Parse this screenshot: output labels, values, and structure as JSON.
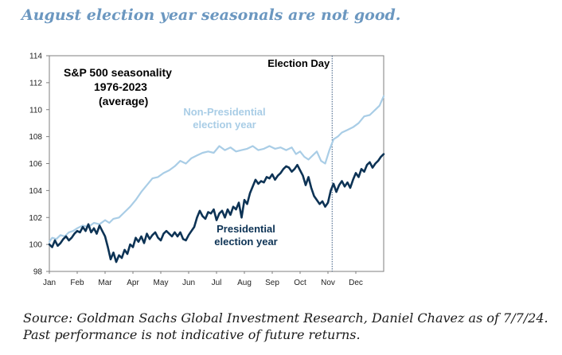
{
  "headline": "August election year seasonals are not good.",
  "source": {
    "line1": "Source: Goldman Sachs Global Investment Research, Daniel Chavez  as of 7/7/24.",
    "line2": "Past performance is not indicative of future returns."
  },
  "colors": {
    "non_presidential": "#a9cde6",
    "presidential": "#0d3355",
    "election_line": "#3a5a80",
    "headline": "#6b97c0"
  },
  "chart_data": {
    "type": "line",
    "title": "S&P 500 seasonality\n1976-2023\n(average)",
    "title_lines": [
      "S&P 500 seasonality",
      "1976-2023",
      "(average)"
    ],
    "xlabel": "",
    "ylabel": "",
    "x_range": [
      0,
      12
    ],
    "ylim": [
      98,
      114
    ],
    "yticks": [
      98,
      100,
      102,
      104,
      106,
      108,
      110,
      112,
      114
    ],
    "ytick_labels": [
      "98",
      "100",
      "102",
      "104",
      "106",
      "108",
      "110",
      "112",
      "114"
    ],
    "xtick_labels": [
      "Jan",
      "Feb",
      "Mar",
      "Apr",
      "May",
      "Jun",
      "Jul",
      "Aug",
      "Sep",
      "Oct",
      "Nov",
      "Dec"
    ],
    "election_day": {
      "x": 10.15,
      "label": "Election Day"
    },
    "series": [
      {
        "name": "Non-Presidential election year",
        "label_lines": [
          "Non-Presidential",
          "election year"
        ],
        "color": "#a9cde6",
        "x": [
          0,
          0.1,
          0.25,
          0.4,
          0.55,
          0.7,
          0.85,
          1.0,
          1.2,
          1.4,
          1.6,
          1.8,
          2.0,
          2.15,
          2.3,
          2.5,
          2.7,
          2.9,
          3.1,
          3.3,
          3.5,
          3.7,
          3.9,
          4.1,
          4.3,
          4.5,
          4.7,
          4.9,
          5.1,
          5.3,
          5.5,
          5.7,
          5.9,
          6.1,
          6.3,
          6.5,
          6.7,
          6.9,
          7.1,
          7.3,
          7.5,
          7.7,
          7.9,
          8.1,
          8.3,
          8.5,
          8.7,
          8.85,
          9.0,
          9.15,
          9.3,
          9.45,
          9.6,
          9.75,
          9.9,
          10.05,
          10.2,
          10.35,
          10.5,
          10.7,
          10.9,
          11.1,
          11.3,
          11.5,
          11.7,
          11.85,
          12.0
        ],
        "values": [
          100.2,
          100.5,
          100.4,
          100.7,
          100.6,
          100.9,
          101.0,
          101.2,
          101.4,
          101.3,
          101.6,
          101.5,
          101.8,
          101.6,
          101.9,
          102.0,
          102.4,
          102.8,
          103.3,
          103.9,
          104.4,
          104.9,
          105.0,
          105.3,
          105.5,
          105.8,
          106.2,
          106.0,
          106.4,
          106.6,
          106.8,
          106.9,
          106.8,
          107.3,
          107.0,
          107.2,
          106.9,
          107.0,
          107.1,
          107.3,
          107.0,
          107.1,
          107.3,
          107.1,
          107.2,
          107.0,
          107.2,
          106.7,
          106.9,
          106.5,
          106.3,
          106.6,
          106.9,
          106.2,
          106.0,
          107.0,
          107.8,
          108.0,
          108.3,
          108.5,
          108.7,
          109.0,
          109.5,
          109.6,
          110.0,
          110.3,
          111.0
        ]
      },
      {
        "name": "Presidential election year",
        "label_lines": [
          "Presidential",
          "election year"
        ],
        "color": "#0d3355",
        "x": [
          0,
          0.1,
          0.2,
          0.3,
          0.4,
          0.5,
          0.6,
          0.7,
          0.8,
          0.9,
          1.0,
          1.1,
          1.2,
          1.3,
          1.4,
          1.5,
          1.6,
          1.7,
          1.8,
          1.9,
          2.0,
          2.1,
          2.2,
          2.3,
          2.4,
          2.5,
          2.6,
          2.7,
          2.8,
          2.9,
          3.0,
          3.1,
          3.2,
          3.3,
          3.4,
          3.5,
          3.6,
          3.7,
          3.8,
          3.9,
          4.0,
          4.1,
          4.2,
          4.3,
          4.4,
          4.5,
          4.6,
          4.7,
          4.8,
          4.9,
          5.0,
          5.1,
          5.2,
          5.3,
          5.4,
          5.5,
          5.6,
          5.7,
          5.8,
          5.9,
          6.0,
          6.1,
          6.2,
          6.3,
          6.4,
          6.5,
          6.6,
          6.7,
          6.8,
          6.9,
          7.0,
          7.1,
          7.2,
          7.3,
          7.4,
          7.5,
          7.6,
          7.7,
          7.8,
          7.9,
          8.0,
          8.1,
          8.2,
          8.3,
          8.4,
          8.5,
          8.6,
          8.7,
          8.8,
          8.9,
          9.0,
          9.1,
          9.2,
          9.3,
          9.4,
          9.5,
          9.6,
          9.7,
          9.8,
          9.9,
          10.0,
          10.1,
          10.2,
          10.3,
          10.4,
          10.5,
          10.6,
          10.7,
          10.8,
          10.9,
          11.0,
          11.1,
          11.2,
          11.3,
          11.4,
          11.5,
          11.6,
          11.7,
          11.8,
          11.9,
          12.0
        ],
        "values": [
          100.0,
          99.8,
          100.3,
          99.9,
          100.1,
          100.4,
          100.6,
          100.3,
          100.5,
          100.8,
          101.0,
          100.9,
          101.3,
          101.0,
          101.5,
          100.9,
          101.2,
          100.8,
          101.4,
          101.0,
          100.6,
          99.8,
          98.9,
          99.4,
          98.7,
          99.2,
          99.0,
          99.6,
          99.3,
          100.0,
          99.8,
          100.5,
          100.2,
          100.6,
          100.1,
          100.8,
          100.4,
          100.7,
          100.9,
          100.5,
          100.3,
          100.8,
          101.0,
          100.8,
          100.6,
          100.9,
          100.6,
          100.9,
          100.4,
          100.3,
          100.7,
          101.0,
          101.3,
          102.0,
          102.5,
          102.1,
          101.9,
          102.4,
          102.3,
          102.6,
          101.8,
          102.3,
          102.5,
          102.0,
          102.6,
          102.2,
          102.8,
          102.6,
          103.1,
          102.0,
          103.3,
          103.0,
          103.8,
          104.3,
          104.8,
          104.5,
          104.7,
          104.6,
          105.0,
          104.9,
          105.2,
          104.8,
          105.1,
          105.3,
          105.6,
          105.8,
          105.7,
          105.4,
          105.6,
          105.9,
          105.5,
          105.1,
          104.4,
          105.0,
          104.2,
          103.6,
          103.3,
          103.0,
          103.2,
          102.8,
          103.1,
          104.0,
          104.5,
          103.9,
          104.4,
          104.7,
          104.3,
          104.6,
          104.2,
          104.8,
          105.3,
          105.0,
          105.6,
          105.4,
          105.9,
          106.1,
          105.7,
          106.0,
          106.2,
          106.5,
          106.7
        ]
      }
    ]
  }
}
